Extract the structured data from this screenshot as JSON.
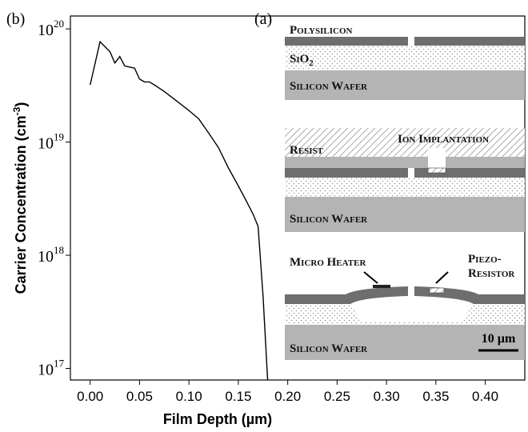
{
  "chart_data": {
    "type": "line",
    "panel_label": "(b)",
    "y_label": "Carrier Concentration (cm",
    "y_label_sup": "-3",
    "y_label_end": ")",
    "x_label": "Film Depth (µm)",
    "x": [
      0,
      0.01,
      0.02,
      0.025,
      0.03,
      0.035,
      0.04,
      0.045,
      0.05,
      0.055,
      0.06,
      0.065,
      0.075,
      0.085,
      0.1,
      0.11,
      0.12,
      0.13,
      0.14,
      0.15,
      0.16,
      0.165,
      0.17,
      0.175,
      0.18
    ],
    "values": [
      3.2e+19,
      7.7e+19,
      6.3e+19,
      5e+19,
      5.7e+19,
      4.7e+19,
      4.6e+19,
      4.5e+19,
      3.6e+19,
      3.4e+19,
      3.4e+19,
      3.2e+19,
      2.8e+19,
      2.4e+19,
      1.9e+19,
      1.6e+19,
      1.2e+19,
      8.9e+18,
      5.9e+18,
      4.1e+18,
      2.8e+18,
      2.3e+18,
      1.8e+18,
      4.4e+17,
      7e+16
    ],
    "color": "#000000",
    "xlim": [
      -0.02,
      0.44
    ],
    "xticks": [
      {
        "value": 0,
        "label": "0.00"
      },
      {
        "value": 0.05,
        "label": "0.05"
      },
      {
        "value": 0.1,
        "label": "0.10"
      },
      {
        "value": 0.15,
        "label": "0.15"
      },
      {
        "value": 0.2,
        "label": "0.20"
      },
      {
        "value": 0.25,
        "label": "0.25"
      },
      {
        "value": 0.3,
        "label": "0.30"
      },
      {
        "value": 0.35,
        "label": "0.35"
      },
      {
        "value": 0.4,
        "label": "0.40"
      }
    ],
    "ylim": [
      7.9e+16,
      1.3e+20
    ],
    "log_y": true,
    "yticks": [
      {
        "value": 1e+17,
        "label": "10",
        "exponent": "17"
      },
      {
        "value": 1e+18,
        "label": "10",
        "exponent": "18"
      },
      {
        "value": 1e+19,
        "label": "10",
        "exponent": "19"
      },
      {
        "value": 1e+20,
        "label": "10",
        "exponent": "20"
      }
    ]
  },
  "diagram": {
    "panel_label": "(a)",
    "polysilicon": "Polysilicon",
    "sio2": "SiO",
    "sio2_sub": "2",
    "wafer_1": "Silicon Wafer",
    "resist": "Resist",
    "ion_implantation": "Ion Implantation",
    "wafer_2": "Silicon Wafer",
    "micro_heater": "Micro Heater",
    "piezo_1": "Piezo-",
    "piezo_2": "Resistor",
    "wafer_3": "Silicon Wafer",
    "scale": "10 µm"
  }
}
